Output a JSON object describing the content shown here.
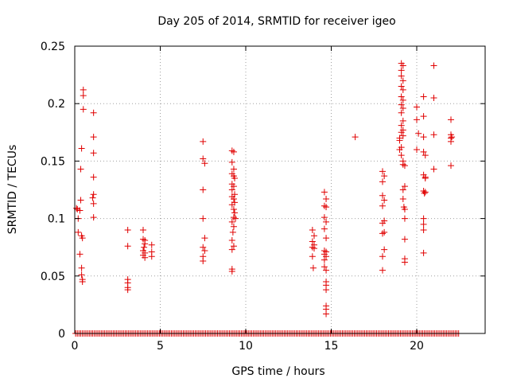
{
  "chart_data": {
    "type": "scatter",
    "title": "Day 205 of 2014, SRMTID for receiver igeo",
    "xlabel": "GPS time / hours",
    "ylabel": "SRMTID / TECUs",
    "xlim": [
      0,
      24
    ],
    "ylim": [
      0,
      0.25
    ],
    "xticks": [
      0,
      5,
      10,
      15,
      20
    ],
    "xtick_labels": [
      "0",
      "5",
      "10",
      "15",
      "20"
    ],
    "yticks": [
      0,
      0.05,
      0.1,
      0.15,
      0.2,
      0.25
    ],
    "ytick_labels": [
      "0",
      "0.05",
      "0.1",
      "0.15",
      "0.2",
      "0.25"
    ],
    "grid": true,
    "marker": "+",
    "color": "#e00000",
    "zero_band": {
      "x_start": 0.05,
      "x_end": 22.5,
      "step": 0.1,
      "value": 0
    },
    "series": [
      {
        "name": "SRMTID",
        "points": [
          [
            0.1,
            0.109
          ],
          [
            0.15,
            0.108
          ],
          [
            0.2,
            0.1
          ],
          [
            0.2,
            0.088
          ],
          [
            0.3,
            0.107
          ],
          [
            0.35,
            0.143
          ],
          [
            0.35,
            0.116
          ],
          [
            0.4,
            0.161
          ],
          [
            0.4,
            0.085
          ],
          [
            0.45,
            0.083
          ],
          [
            0.3,
            0.069
          ],
          [
            0.4,
            0.057
          ],
          [
            0.4,
            0.051
          ],
          [
            0.45,
            0.047
          ],
          [
            0.45,
            0.045
          ],
          [
            0.5,
            0.212
          ],
          [
            0.5,
            0.207
          ],
          [
            0.5,
            0.195
          ],
          [
            1.1,
            0.192
          ],
          [
            1.1,
            0.171
          ],
          [
            1.1,
            0.157
          ],
          [
            1.1,
            0.136
          ],
          [
            1.1,
            0.121
          ],
          [
            1.05,
            0.118
          ],
          [
            1.1,
            0.113
          ],
          [
            1.1,
            0.101
          ],
          [
            3.1,
            0.09
          ],
          [
            3.1,
            0.076
          ],
          [
            3.1,
            0.047
          ],
          [
            3.1,
            0.044
          ],
          [
            3.1,
            0.04
          ],
          [
            3.1,
            0.038
          ],
          [
            4.0,
            0.09
          ],
          [
            4.0,
            0.082
          ],
          [
            4.1,
            0.081
          ],
          [
            4.1,
            0.078
          ],
          [
            4.05,
            0.075
          ],
          [
            4.0,
            0.072
          ],
          [
            4.1,
            0.07
          ],
          [
            4.0,
            0.068
          ],
          [
            4.1,
            0.066
          ],
          [
            4.5,
            0.077
          ],
          [
            4.5,
            0.071
          ],
          [
            4.5,
            0.067
          ],
          [
            7.5,
            0.167
          ],
          [
            7.5,
            0.152
          ],
          [
            7.6,
            0.148
          ],
          [
            7.5,
            0.125
          ],
          [
            7.5,
            0.1
          ],
          [
            7.6,
            0.083
          ],
          [
            7.5,
            0.075
          ],
          [
            7.6,
            0.072
          ],
          [
            7.5,
            0.067
          ],
          [
            7.5,
            0.063
          ],
          [
            9.2,
            0.159
          ],
          [
            9.3,
            0.158
          ],
          [
            9.2,
            0.149
          ],
          [
            9.3,
            0.143
          ],
          [
            9.2,
            0.139
          ],
          [
            9.3,
            0.137
          ],
          [
            9.35,
            0.135
          ],
          [
            9.2,
            0.13
          ],
          [
            9.3,
            0.128
          ],
          [
            9.2,
            0.125
          ],
          [
            9.35,
            0.121
          ],
          [
            9.2,
            0.119
          ],
          [
            9.3,
            0.117
          ],
          [
            9.35,
            0.114
          ],
          [
            9.2,
            0.112
          ],
          [
            9.3,
            0.108
          ],
          [
            9.35,
            0.105
          ],
          [
            9.3,
            0.101
          ],
          [
            9.4,
            0.1
          ],
          [
            9.2,
            0.097
          ],
          [
            9.3,
            0.093
          ],
          [
            9.25,
            0.088
          ],
          [
            9.2,
            0.081
          ],
          [
            9.3,
            0.076
          ],
          [
            9.2,
            0.073
          ],
          [
            9.2,
            0.056
          ],
          [
            9.2,
            0.054
          ],
          [
            13.9,
            0.09
          ],
          [
            14.0,
            0.085
          ],
          [
            13.9,
            0.08
          ],
          [
            14.0,
            0.077
          ],
          [
            13.9,
            0.075
          ],
          [
            14.0,
            0.074
          ],
          [
            13.9,
            0.067
          ],
          [
            13.95,
            0.057
          ],
          [
            14.6,
            0.123
          ],
          [
            14.7,
            0.117
          ],
          [
            14.6,
            0.111
          ],
          [
            14.7,
            0.11
          ],
          [
            14.6,
            0.101
          ],
          [
            14.7,
            0.097
          ],
          [
            14.6,
            0.091
          ],
          [
            14.7,
            0.083
          ],
          [
            14.6,
            0.072
          ],
          [
            14.7,
            0.071
          ],
          [
            14.6,
            0.069
          ],
          [
            14.7,
            0.067
          ],
          [
            14.6,
            0.064
          ],
          [
            14.6,
            0.058
          ],
          [
            14.7,
            0.055
          ],
          [
            14.7,
            0.045
          ],
          [
            14.7,
            0.042
          ],
          [
            14.7,
            0.038
          ],
          [
            14.7,
            0.024
          ],
          [
            14.7,
            0.021
          ],
          [
            14.7,
            0.017
          ],
          [
            16.4,
            0.171
          ],
          [
            18.0,
            0.141
          ],
          [
            18.1,
            0.137
          ],
          [
            18.0,
            0.132
          ],
          [
            18.0,
            0.12
          ],
          [
            18.1,
            0.116
          ],
          [
            18.0,
            0.111
          ],
          [
            18.1,
            0.098
          ],
          [
            18.0,
            0.096
          ],
          [
            18.1,
            0.088
          ],
          [
            18.0,
            0.087
          ],
          [
            18.1,
            0.073
          ],
          [
            18.0,
            0.067
          ],
          [
            18.0,
            0.055
          ],
          [
            19.1,
            0.235
          ],
          [
            19.2,
            0.233
          ],
          [
            19.1,
            0.229
          ],
          [
            19.1,
            0.224
          ],
          [
            19.2,
            0.22
          ],
          [
            19.1,
            0.215
          ],
          [
            19.2,
            0.212
          ],
          [
            19.1,
            0.206
          ],
          [
            19.2,
            0.203
          ],
          [
            19.1,
            0.199
          ],
          [
            19.2,
            0.196
          ],
          [
            19.1,
            0.192
          ],
          [
            19.2,
            0.185
          ],
          [
            19.1,
            0.181
          ],
          [
            19.2,
            0.177
          ],
          [
            19.1,
            0.175
          ],
          [
            19.2,
            0.172
          ],
          [
            19.0,
            0.168
          ],
          [
            19.1,
            0.162
          ],
          [
            19.1,
            0.155
          ],
          [
            19.2,
            0.15
          ],
          [
            19.2,
            0.147
          ],
          [
            19.3,
            0.146
          ],
          [
            19.3,
            0.128
          ],
          [
            19.2,
            0.125
          ],
          [
            19.2,
            0.117
          ],
          [
            19.25,
            0.11
          ],
          [
            19.3,
            0.108
          ],
          [
            19.3,
            0.1
          ],
          [
            19.3,
            0.082
          ],
          [
            19.3,
            0.065
          ],
          [
            19.3,
            0.062
          ],
          [
            19.0,
            0.17
          ],
          [
            19.0,
            0.16
          ],
          [
            20.0,
            0.197
          ],
          [
            20.0,
            0.186
          ],
          [
            20.0,
            0.16
          ],
          [
            20.1,
            0.174
          ],
          [
            20.4,
            0.206
          ],
          [
            20.4,
            0.189
          ],
          [
            20.4,
            0.171
          ],
          [
            20.4,
            0.158
          ],
          [
            20.5,
            0.155
          ],
          [
            20.4,
            0.138
          ],
          [
            20.5,
            0.136
          ],
          [
            20.5,
            0.135
          ],
          [
            20.4,
            0.124
          ],
          [
            20.5,
            0.123
          ],
          [
            20.45,
            0.122
          ],
          [
            20.4,
            0.1
          ],
          [
            20.4,
            0.095
          ],
          [
            20.4,
            0.09
          ],
          [
            20.4,
            0.07
          ],
          [
            21.0,
            0.233
          ],
          [
            21.0,
            0.205
          ],
          [
            21.0,
            0.173
          ],
          [
            21.0,
            0.143
          ],
          [
            22.0,
            0.186
          ],
          [
            22.0,
            0.173
          ],
          [
            22.05,
            0.171
          ],
          [
            22.0,
            0.17
          ],
          [
            22.0,
            0.167
          ],
          [
            22.0,
            0.146
          ]
        ]
      }
    ]
  }
}
